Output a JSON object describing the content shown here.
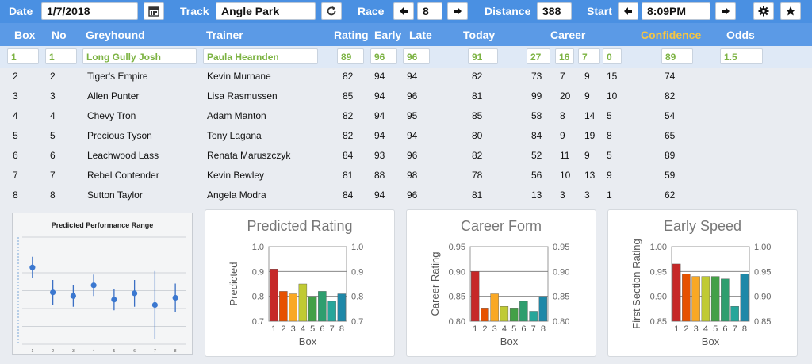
{
  "toolbar": {
    "date_label": "Date",
    "date_value": "1/7/2018",
    "track_label": "Track",
    "track_value": "Angle Park",
    "race_label": "Race",
    "race_value": "8",
    "distance_label": "Distance",
    "distance_value": "388",
    "start_label": "Start",
    "start_value": "8:09PM",
    "icons": [
      "calendar-icon",
      "refresh-icon",
      "arrow-left-icon",
      "arrow-right-icon",
      "gear-icon",
      "star-icon"
    ]
  },
  "table": {
    "headers": {
      "box": "Box",
      "no": "No",
      "greyhound": "Greyhound",
      "trainer": "Trainer",
      "rating": "Rating",
      "early": "Early",
      "late": "Late",
      "today": "Today",
      "career": "Career",
      "confidence": "Confidence",
      "odds": "Odds"
    },
    "selected": {
      "box": "1",
      "no": "1",
      "greyhound": "Long Gully Josh",
      "trainer": "Paula Hearnden",
      "rating": "89",
      "early": "96",
      "late": "96",
      "today": "91",
      "c1": "27",
      "c2": "16",
      "c3": "7",
      "c4": "0",
      "confidence": "89",
      "odds": "1.5"
    },
    "rows": [
      {
        "box": "2",
        "no": "2",
        "greyhound": "Tiger's Empire",
        "trainer": "Kevin Murnane",
        "rating": "82",
        "early": "94",
        "late": "94",
        "today": "82",
        "c1": "73",
        "c2": "7",
        "c3": "9",
        "c4": "15",
        "confidence": "74"
      },
      {
        "box": "3",
        "no": "3",
        "greyhound": "Allen Punter",
        "trainer": "Lisa Rasmussen",
        "rating": "85",
        "early": "94",
        "late": "96",
        "today": "81",
        "c1": "99",
        "c2": "20",
        "c3": "9",
        "c4": "10",
        "confidence": "82"
      },
      {
        "box": "4",
        "no": "4",
        "greyhound": "Chevy Tron",
        "trainer": "Adam Manton",
        "rating": "82",
        "early": "94",
        "late": "95",
        "today": "85",
        "c1": "58",
        "c2": "8",
        "c3": "14",
        "c4": "5",
        "confidence": "54"
      },
      {
        "box": "5",
        "no": "5",
        "greyhound": "Precious Tyson",
        "trainer": "Tony Lagana",
        "rating": "82",
        "early": "94",
        "late": "94",
        "today": "80",
        "c1": "84",
        "c2": "9",
        "c3": "19",
        "c4": "8",
        "confidence": "65"
      },
      {
        "box": "6",
        "no": "6",
        "greyhound": "Leachwood Lass",
        "trainer": "Renata Maruszczyk",
        "rating": "84",
        "early": "93",
        "late": "96",
        "today": "82",
        "c1": "52",
        "c2": "11",
        "c3": "9",
        "c4": "5",
        "confidence": "89"
      },
      {
        "box": "7",
        "no": "7",
        "greyhound": "Rebel Contender",
        "trainer": "Kevin Bewley",
        "rating": "81",
        "early": "88",
        "late": "98",
        "today": "78",
        "c1": "56",
        "c2": "10",
        "c3": "13",
        "c4": "9",
        "confidence": "59"
      },
      {
        "box": "8",
        "no": "8",
        "greyhound": "Sutton Taylor",
        "trainer": "Angela Modra",
        "rating": "84",
        "early": "94",
        "late": "96",
        "today": "81",
        "c1": "13",
        "c2": "3",
        "c3": "3",
        "c4": "1",
        "confidence": "62"
      }
    ]
  },
  "colors": {
    "topbar": "#4a90e2",
    "header": "#5b9ae6",
    "confidence_header": "#f5c542",
    "selected_text": "#7cb342",
    "bar_gradient": [
      "#c62828",
      "#e65100",
      "#f9a825",
      "#c0ca33",
      "#43a047",
      "#2e9e6e",
      "#26a69a",
      "#1e88a8"
    ]
  },
  "chart_data": [
    {
      "type": "scatter",
      "title": "Predicted Performance Range",
      "categories": [
        "1",
        "2",
        "3",
        "4",
        "5",
        "6",
        "7",
        "8"
      ],
      "values": [
        0.86,
        0.58,
        0.54,
        0.66,
        0.5,
        0.57,
        0.44,
        0.52
      ],
      "low": [
        0.74,
        0.44,
        0.42,
        0.54,
        0.38,
        0.42,
        0.06,
        0.36
      ],
      "high": [
        0.98,
        0.72,
        0.66,
        0.78,
        0.62,
        0.72,
        0.82,
        0.68
      ],
      "ylim": [
        0,
        1.2
      ]
    },
    {
      "type": "bar",
      "title": "Predicted Rating",
      "xlabel": "Box",
      "ylabel": "Predicted",
      "categories": [
        "1",
        "2",
        "3",
        "4",
        "5",
        "6",
        "7",
        "8"
      ],
      "values": [
        0.91,
        0.82,
        0.81,
        0.85,
        0.8,
        0.82,
        0.78,
        0.81
      ],
      "ylim": [
        0.7,
        1.0
      ],
      "ticks": [
        "1.0",
        "0.9",
        "0.8",
        "0.7"
      ]
    },
    {
      "type": "bar",
      "title": "Career Form",
      "xlabel": "Box",
      "ylabel": "Career Rating",
      "categories": [
        "1",
        "2",
        "3",
        "4",
        "5",
        "6",
        "7",
        "8"
      ],
      "values": [
        0.9,
        0.825,
        0.855,
        0.83,
        0.825,
        0.84,
        0.82,
        0.85
      ],
      "ylim": [
        0.8,
        0.95
      ],
      "ticks": [
        "0.95",
        "0.90",
        "0.85",
        "0.80"
      ]
    },
    {
      "type": "bar",
      "title": "Early Speed",
      "xlabel": "Box",
      "ylabel": "First Section Rating",
      "categories": [
        "1",
        "2",
        "3",
        "4",
        "5",
        "6",
        "7",
        "8"
      ],
      "values": [
        0.965,
        0.945,
        0.94,
        0.94,
        0.94,
        0.935,
        0.88,
        0.945
      ],
      "ylim": [
        0.85,
        1.0
      ],
      "ticks": [
        "1.00",
        "0.95",
        "0.90",
        "0.85"
      ]
    }
  ]
}
